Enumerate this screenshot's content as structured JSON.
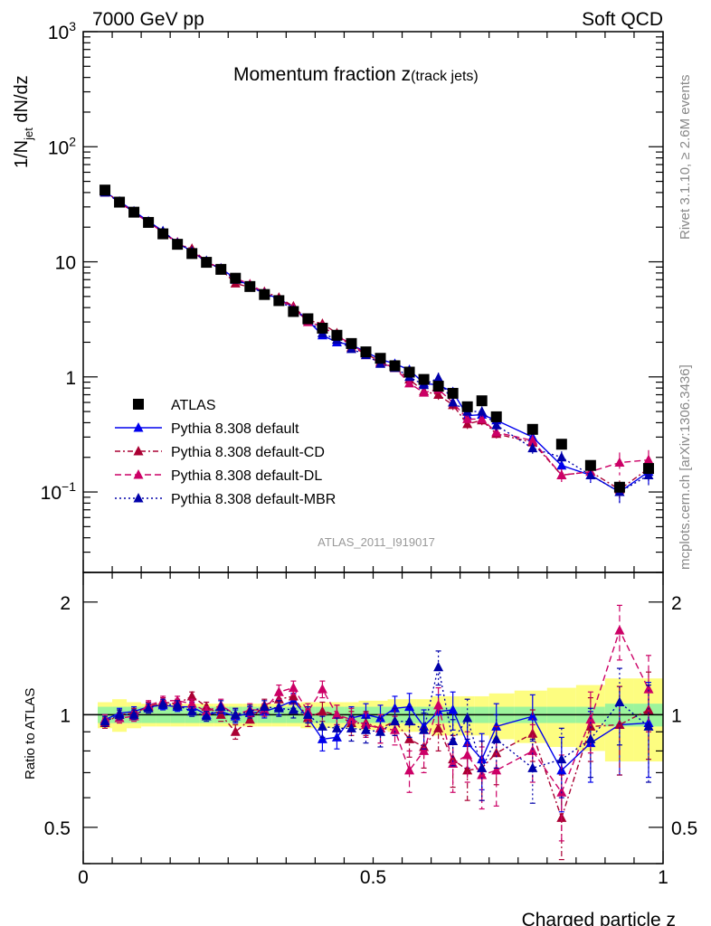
{
  "header": {
    "left": "7000 GeV pp",
    "right": "Soft QCD"
  },
  "side": {
    "top": "Rivet 3.1.10, ≥ 2.6M events",
    "bottom": "mcplots.cern.ch [arXiv:1306.3436]"
  },
  "chart_data": {
    "type": "scatter",
    "title": "Momentum fraction z(track jets)",
    "analysis_label": "ATLAS_2011_I919017",
    "xlabel": "Charged particle z",
    "ylabel": "1/N_jet dN/dz",
    "ratio_ylabel": "Ratio to ATLAS",
    "xlim": [
      0,
      1
    ],
    "ylim": [
      0.02,
      1000
    ],
    "yscale": "log",
    "ratio_ylim": [
      0.4,
      2.4
    ],
    "ratio_yscale": "log",
    "xticks": [
      "0",
      "0.5",
      "1"
    ],
    "yticks": [
      "10⁻¹",
      "1",
      "10",
      "10²",
      "10³"
    ],
    "ratio_yticks": [
      "0.5",
      "1",
      "2"
    ],
    "legend_position": "bottom-left",
    "grid": false,
    "x": [
      0.0375,
      0.0625,
      0.0875,
      0.1125,
      0.1375,
      0.1625,
      0.1875,
      0.2125,
      0.2375,
      0.2625,
      0.2875,
      0.3125,
      0.3375,
      0.3625,
      0.3875,
      0.4125,
      0.4375,
      0.4625,
      0.4875,
      0.5125,
      0.5375,
      0.5625,
      0.5875,
      0.6125,
      0.6375,
      0.6625,
      0.6875,
      0.7125,
      0.775,
      0.825,
      0.875,
      0.925,
      0.975
    ],
    "series": [
      {
        "name": "ATLAS",
        "color": "#000000",
        "values": [
          42,
          33,
          27,
          22,
          17.5,
          14.2,
          11.8,
          9.9,
          8.6,
          7.2,
          6.1,
          5.2,
          4.6,
          3.7,
          3.2,
          2.65,
          2.3,
          1.95,
          1.65,
          1.45,
          1.25,
          1.1,
          0.95,
          0.83,
          0.72,
          0.55,
          0.62,
          0.45,
          0.35,
          0.26,
          0.17,
          0.11,
          0.16
        ],
        "band_ratio_inner": [
          0.05,
          0.05,
          0.05,
          0.05,
          0.05,
          0.05,
          0.05,
          0.05,
          0.05,
          0.05,
          0.05,
          0.05,
          0.05,
          0.05,
          0.05,
          0.05,
          0.05,
          0.05,
          0.05,
          0.05,
          0.05,
          0.05,
          0.05,
          0.05,
          0.05,
          0.05,
          0.05,
          0.05,
          0.05,
          0.05,
          0.05,
          0.07,
          0.07
        ],
        "band_ratio_outer": [
          0.08,
          0.1,
          0.08,
          0.07,
          0.07,
          0.07,
          0.07,
          0.07,
          0.07,
          0.07,
          0.07,
          0.07,
          0.07,
          0.07,
          0.08,
          0.08,
          0.08,
          0.08,
          0.09,
          0.09,
          0.1,
          0.1,
          0.1,
          0.12,
          0.12,
          0.12,
          0.12,
          0.14,
          0.16,
          0.18,
          0.2,
          0.25,
          0.25
        ]
      },
      {
        "name": "Pythia 8.308 default",
        "color": "#0000ee",
        "dash": "",
        "values": [
          40.5,
          33.5,
          27.5,
          22.5,
          18.5,
          14.5,
          12.4,
          9.9,
          8.8,
          7.1,
          6.2,
          5.3,
          4.8,
          4.0,
          3.1,
          2.3,
          2.0,
          1.9,
          1.65,
          1.42,
          1.3,
          1.15,
          0.88,
          0.85,
          0.74,
          0.46,
          0.47,
          0.42,
          0.3,
          0.17,
          0.14,
          0.1,
          0.15
        ],
        "ratio": [
          0.97,
          1.01,
          1.02,
          1.05,
          1.06,
          1.05,
          1.05,
          1.0,
          1.02,
          0.99,
          1.01,
          1.02,
          1.05,
          1.09,
          0.98,
          0.86,
          0.87,
          0.98,
          1.0,
          0.98,
          1.04,
          1.05,
          0.93,
          1.02,
          1.03,
          0.84,
          0.76,
          0.93,
          0.99,
          0.71,
          0.84,
          0.94,
          0.95
        ],
        "ratio_err": [
          0.03,
          0.03,
          0.03,
          0.03,
          0.03,
          0.03,
          0.03,
          0.03,
          0.04,
          0.04,
          0.04,
          0.04,
          0.05,
          0.05,
          0.05,
          0.06,
          0.06,
          0.07,
          0.07,
          0.08,
          0.08,
          0.09,
          0.1,
          0.11,
          0.12,
          0.12,
          0.13,
          0.14,
          0.14,
          0.16,
          0.18,
          0.25,
          0.27
        ]
      },
      {
        "name": "Pythia 8.308 default-CD",
        "color": "#aa0033",
        "dash": "6,3,2,3",
        "values": [
          41,
          33,
          27,
          22,
          18.2,
          14.3,
          13.0,
          10.0,
          8.6,
          6.5,
          6.0,
          5.5,
          4.9,
          4.1,
          3.1,
          2.9,
          2.4,
          1.8,
          1.6,
          1.35,
          1.2,
          0.95,
          0.75,
          0.7,
          0.57,
          0.39,
          0.42,
          0.32,
          0.27,
          0.14,
          0.15,
          0.105,
          0.16
        ],
        "ratio": [
          0.95,
          1.0,
          1.01,
          1.05,
          1.08,
          1.07,
          1.12,
          1.05,
          1.0,
          0.9,
          0.97,
          1.06,
          1.1,
          1.12,
          0.98,
          1.02,
          1.0,
          0.95,
          0.95,
          0.92,
          0.96,
          0.86,
          0.82,
          0.92,
          0.76,
          0.71,
          0.72,
          0.79,
          0.89,
          0.53,
          0.93,
          0.94,
          1.03
        ],
        "ratio_err": [
          0.03,
          0.03,
          0.03,
          0.03,
          0.03,
          0.03,
          0.03,
          0.03,
          0.04,
          0.04,
          0.04,
          0.04,
          0.05,
          0.05,
          0.05,
          0.06,
          0.06,
          0.07,
          0.07,
          0.08,
          0.08,
          0.09,
          0.1,
          0.12,
          0.12,
          0.12,
          0.13,
          0.14,
          0.14,
          0.16,
          0.18,
          0.25,
          0.27
        ]
      },
      {
        "name": "Pythia 8.308 default-DL",
        "color": "#cc0066",
        "dash": "7,4",
        "values": [
          40,
          33,
          26.5,
          22.2,
          18,
          14.8,
          12.2,
          10.1,
          8.7,
          7.2,
          6.4,
          5.4,
          4.7,
          4.0,
          3.0,
          2.75,
          2.25,
          1.95,
          1.55,
          1.32,
          1.2,
          0.88,
          0.73,
          0.78,
          0.6,
          0.43,
          0.43,
          0.33,
          0.28,
          0.14,
          0.15,
          0.18,
          0.19
        ],
        "ratio": [
          0.97,
          0.98,
          0.99,
          1.06,
          1.09,
          1.09,
          1.07,
          1.02,
          1.06,
          1.0,
          1.03,
          1.03,
          1.15,
          1.18,
          1.02,
          1.17,
          1.0,
          0.97,
          0.94,
          0.92,
          0.91,
          0.71,
          0.8,
          1.06,
          0.74,
          0.78,
          0.69,
          0.71,
          0.8,
          0.62,
          0.97,
          1.68,
          1.17
        ],
        "ratio_err": [
          0.03,
          0.03,
          0.03,
          0.03,
          0.03,
          0.03,
          0.03,
          0.03,
          0.04,
          0.04,
          0.04,
          0.04,
          0.05,
          0.05,
          0.05,
          0.06,
          0.06,
          0.07,
          0.07,
          0.08,
          0.08,
          0.09,
          0.1,
          0.12,
          0.12,
          0.12,
          0.13,
          0.14,
          0.14,
          0.16,
          0.18,
          0.28,
          0.27
        ]
      },
      {
        "name": "Pythia 8.308 default-MBR",
        "color": "#0000aa",
        "dash": "2,3",
        "values": [
          40,
          33,
          27,
          22.3,
          18.4,
          14.6,
          12.3,
          10.2,
          8.5,
          7.0,
          6.1,
          5.3,
          4.65,
          3.8,
          3.15,
          2.4,
          2.1,
          1.75,
          1.55,
          1.3,
          1.2,
          1.0,
          0.85,
          0.98,
          0.6,
          0.5,
          0.5,
          0.38,
          0.24,
          0.2,
          0.14,
          0.1,
          0.14
        ],
        "ratio": [
          0.96,
          1.0,
          1.0,
          1.04,
          1.07,
          1.06,
          1.02,
          0.99,
          1.05,
          1.0,
          1.02,
          1.05,
          1.04,
          1.03,
          1.0,
          0.93,
          0.92,
          0.92,
          0.91,
          0.9,
          0.96,
          0.96,
          0.91,
          1.34,
          0.85,
          0.98,
          0.72,
          0.86,
          0.72,
          0.76,
          0.86,
          1.08,
          0.93
        ],
        "ratio_err": [
          0.03,
          0.03,
          0.03,
          0.03,
          0.03,
          0.03,
          0.03,
          0.03,
          0.04,
          0.04,
          0.04,
          0.04,
          0.05,
          0.05,
          0.05,
          0.06,
          0.06,
          0.07,
          0.07,
          0.08,
          0.08,
          0.09,
          0.1,
          0.14,
          0.12,
          0.12,
          0.13,
          0.14,
          0.14,
          0.16,
          0.18,
          0.25,
          0.27
        ]
      }
    ]
  }
}
